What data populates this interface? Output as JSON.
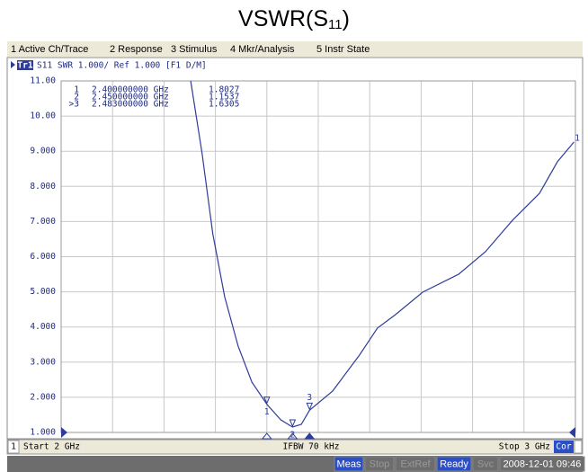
{
  "title": {
    "main": "VSWR(S",
    "sub": "11",
    "end": ")"
  },
  "menu": [
    "1 Active Ch/Trace",
    "2 Response",
    "3 Stimulus",
    "4 Mkr/Analysis",
    "5 Instr State"
  ],
  "trace_header": {
    "id": "Tr1",
    "text": "S11 SWR 1.000/ Ref 1.000 [F1 D/M]"
  },
  "chart_data": {
    "type": "line",
    "x": [
      2.252,
      2.274,
      2.295,
      2.318,
      2.344,
      2.371,
      2.4,
      2.427,
      2.45,
      2.467,
      2.483,
      2.528,
      2.58,
      2.615,
      2.65,
      2.703,
      2.773,
      2.825,
      2.878,
      2.93,
      2.965,
      2.997
    ],
    "series": [
      {
        "name": "S11",
        "color": "#2e3c9a",
        "values": [
          11.0,
          8.95,
          6.65,
          4.86,
          3.46,
          2.43,
          1.8027,
          1.36,
          1.1537,
          1.23,
          1.6305,
          2.18,
          3.2,
          3.97,
          4.35,
          4.99,
          5.5,
          6.14,
          7.04,
          7.8,
          8.7,
          9.26
        ]
      }
    ],
    "end_label": "1",
    "xlim": [
      2,
      3
    ],
    "xticks": [
      2,
      2.1,
      2.2,
      2.3,
      2.4,
      2.5,
      2.6,
      2.7,
      2.8,
      2.9,
      3
    ],
    "ylim": [
      1,
      11
    ],
    "yticks": [
      {
        "value": 1,
        "label": "1.000"
      },
      {
        "value": 2,
        "label": "2.000"
      },
      {
        "value": 3,
        "label": "3.000"
      },
      {
        "value": 4,
        "label": "4.000"
      },
      {
        "value": 5,
        "label": "5.000"
      },
      {
        "value": 6,
        "label": "6.000"
      },
      {
        "value": 7,
        "label": "7.000"
      },
      {
        "value": 8,
        "label": "8.000"
      },
      {
        "value": 9,
        "label": "9.000"
      },
      {
        "value": 10,
        "label": "10.00"
      },
      {
        "value": 11,
        "label": "11.00"
      }
    ],
    "grid": true
  },
  "markers": [
    {
      "id": "1",
      "table_id": "1",
      "freq": {
        "value": 2.4,
        "label": "2.400000000 GHz"
      },
      "value": 1.8027
    },
    {
      "id": "2",
      "table_id": "2",
      "freq": {
        "value": 2.45,
        "label": "2.450000000 GHz"
      },
      "value": 1.1537
    },
    {
      "id": "3",
      "table_id": ">3",
      "freq": {
        "value": 2.483,
        "label": "2.483000000 GHz"
      },
      "value": 1.6305
    }
  ],
  "footer": {
    "channel": "1",
    "start": "Start 2 GHz",
    "ifbw": "IFBW 70 kHz",
    "stop": "Stop 3 GHz",
    "cor": "Cor"
  },
  "status": [
    "Meas",
    "Stop",
    "ExtRef",
    "Ready",
    "Svc",
    "2008-12-01 09:46"
  ]
}
